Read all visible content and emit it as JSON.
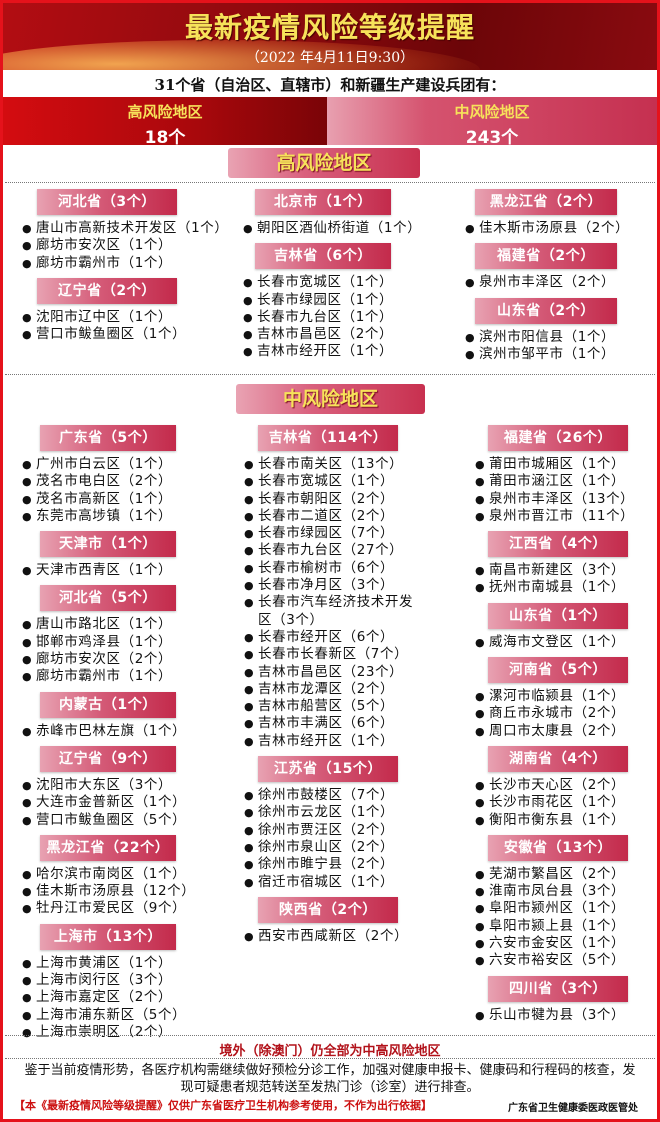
{
  "title": "最新疫情风险等级提醒",
  "date": "（2022 年4月11日9:30）",
  "intro": "31个省（自治区、直辖市）和新疆生产建设兵团有：",
  "summary": {
    "high": {
      "label": "高风险地区",
      "count": "18个"
    },
    "mid": {
      "label": "中风险地区",
      "count": "243个"
    }
  },
  "colors": {
    "border": "#e5121b",
    "title": "#f7e25a",
    "high_box": "#c00a0e",
    "mid_box": "#d04565",
    "header_pill": "#d45a77"
  },
  "high": {
    "label": "高风险地区",
    "columns": [
      [
        {
          "header": "河北省（3个）",
          "items": [
            "唐山市高新技术开发区（1个）",
            "廊坊市安次区（1个）",
            "廊坊市霸州市（1个）"
          ]
        },
        {
          "header": "辽宁省（2个）",
          "items": [
            "沈阳市辽中区（1个）",
            "营口市鲅鱼圈区（1个）"
          ]
        }
      ],
      [
        {
          "header": "北京市（1个）",
          "items": [
            "朝阳区酒仙桥街道（1个）"
          ]
        },
        {
          "header": "吉林省（6个）",
          "items": [
            "长春市宽城区（1个）",
            "长春市绿园区（1个）",
            "长春市九台区（1个）",
            "吉林市昌邑区（2个）",
            "吉林市经开区（1个）"
          ]
        }
      ],
      [
        {
          "header": "黑龙江省（2个）",
          "items": [
            "佳木斯市汤原县（2个）"
          ]
        },
        {
          "header": "福建省（2个）",
          "items": [
            "泉州市丰泽区（2个）"
          ]
        },
        {
          "header": "山东省（2个）",
          "items": [
            "滨州市阳信县（1个）",
            "滨州市邹平市（1个）"
          ]
        }
      ]
    ]
  },
  "mid": {
    "label": "中风险地区",
    "columns": [
      [
        {
          "header": "广东省（5个）",
          "items": [
            "广州市白云区（1个）",
            "茂名市电白区（2个）",
            "茂名市高新区（1个）",
            "东莞市高埗镇（1个）"
          ]
        },
        {
          "header": "天津市（1个）",
          "items": [
            "天津市西青区（1个）"
          ]
        },
        {
          "header": "河北省（5个）",
          "items": [
            "唐山市路北区（1个）",
            "邯郸市鸡泽县（1个）",
            "廊坊市安次区（2个）",
            "廊坊市霸州市（1个）"
          ]
        },
        {
          "header": "内蒙古（1个）",
          "items": [
            "赤峰市巴林左旗（1个）"
          ]
        },
        {
          "header": "辽宁省（9个）",
          "items": [
            "沈阳市大东区（3个）",
            "大连市金普新区（1个）",
            "营口市鲅鱼圈区（5个）"
          ]
        },
        {
          "header": "黑龙江省（22个）",
          "items": [
            "哈尔滨市南岗区（1个）",
            "佳木斯市汤原县（12个）",
            "牡丹江市爱民区（9个）"
          ]
        },
        {
          "header": "上海市（13个）",
          "items": [
            "上海市黄浦区（1个）",
            "上海市闵行区（3个）",
            "上海市嘉定区（2个）",
            "上海市浦东新区（5个）",
            "上海市崇明区（2个）"
          ]
        }
      ],
      [
        {
          "header": "吉林省（114个）",
          "items": [
            "长春市南关区（13个）",
            "长春市宽城区（1个）",
            "长春市朝阳区（2个）",
            "长春市二道区（2个）",
            "长春市绿园区（7个）",
            "长春市九台区（27个）",
            "长春市榆树市（6个）",
            "长春市净月区（3个）",
            "长春市汽车经济技术开发区（3个）",
            "长春市经开区（6个）",
            "长春市长春新区（7个）",
            "吉林市昌邑区（23个）",
            "吉林市龙潭区（2个）",
            "吉林市船营区（5个）",
            "吉林市丰满区（6个）",
            "吉林市经开区（1个）"
          ]
        },
        {
          "header": "江苏省（15个）",
          "items": [
            "徐州市鼓楼区（7个）",
            "徐州市云龙区（1个）",
            "徐州市贾汪区（2个）",
            "徐州市泉山区（2个）",
            "徐州市睢宁县（2个）",
            "宿迁市宿城区（1个）"
          ]
        },
        {
          "header": "陕西省（2个）",
          "items": [
            "西安市西咸新区（2个）"
          ]
        }
      ],
      [
        {
          "header": "福建省（26个）",
          "items": [
            "莆田市城厢区（1个）",
            "莆田市涵江区（1个）",
            "泉州市丰泽区（13个）",
            "泉州市晋江市（11个）"
          ]
        },
        {
          "header": "江西省（4个）",
          "items": [
            "南昌市新建区（3个）",
            "抚州市南城县（1个）"
          ]
        },
        {
          "header": "山东省（1个）",
          "items": [
            "威海市文登区（1个）"
          ]
        },
        {
          "header": "河南省（5个）",
          "items": [
            "漯河市临颍县（1个）",
            "商丘市永城市（2个）",
            "周口市太康县（2个）"
          ]
        },
        {
          "header": "湖南省（4个）",
          "items": [
            "长沙市天心区（2个）",
            "长沙市雨花区（1个）",
            "衡阳市衡东县（1个）"
          ]
        },
        {
          "header": "安徽省（13个）",
          "items": [
            "芜湖市繁昌区（2个）",
            "淮南市凤台县（3个）",
            "阜阳市颍州区（1个）",
            "阜阳市颍上县（1个）",
            "六安市金安区（1个）",
            "六安市裕安区（5个）"
          ]
        },
        {
          "header": "四川省（3个）",
          "items": [
            "乐山市犍为县（3个）"
          ]
        }
      ]
    ]
  },
  "footer": {
    "overseas": "境外（除澳门）仍全部为中高风险地区",
    "notice": "鉴于当前疫情形势，各医疗机构需继续做好预检分诊工作，加强对健康申报卡、健康码和行程码的核查，发现可疑患者规范转送至发热门诊（诊室）进行排查。",
    "disclaimer": "【本《最新疫情风险等级提醒》仅供广东省医疗卫生机构参考使用，不作为出行依据】",
    "issuer": "广东省卫生健康委医政医管处"
  }
}
